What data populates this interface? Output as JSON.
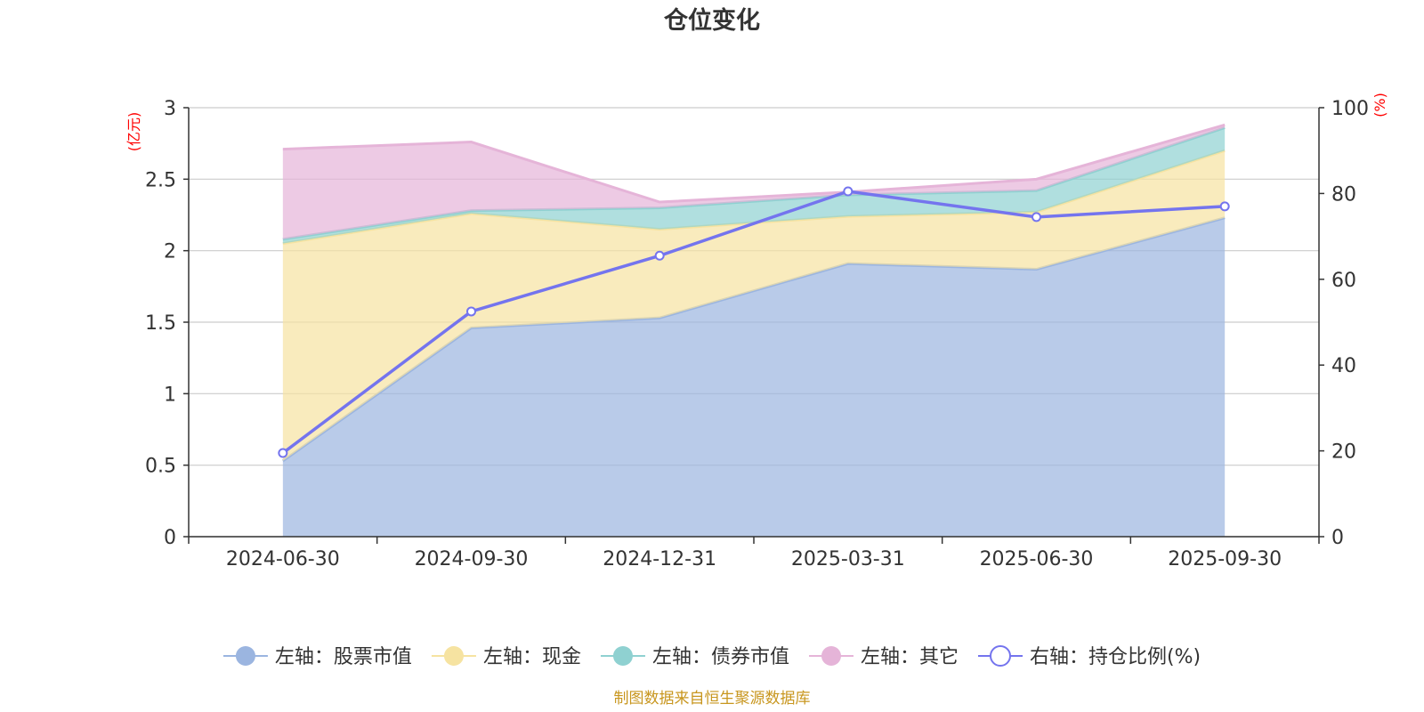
{
  "chart_data": {
    "type": "area",
    "title": "仓位变化",
    "x": [
      "2024-06-30",
      "2024-09-30",
      "2024-12-31",
      "2025-03-31",
      "2025-06-30",
      "2025-09-30"
    ],
    "left_axis": {
      "unit": "(亿元)",
      "ylim": [
        0,
        3
      ],
      "ticks": [
        "0",
        "0.5",
        "1",
        "1.5",
        "2",
        "2.5",
        "3"
      ]
    },
    "right_axis": {
      "unit": "(%)",
      "ylim": [
        0,
        100
      ],
      "ticks": [
        "0",
        "20",
        "40",
        "60",
        "80",
        "100"
      ]
    },
    "stacked_series": [
      {
        "name": "左轴：股票市值",
        "values": [
          0.53,
          1.46,
          1.53,
          1.91,
          1.87,
          2.23
        ],
        "color": "#9bb5e0"
      },
      {
        "name": "左轴：现金",
        "values": [
          1.52,
          0.8,
          0.62,
          0.33,
          0.4,
          0.47
        ],
        "color": "#f6e3a1"
      },
      {
        "name": "左轴：债券市值",
        "values": [
          0.03,
          0.02,
          0.15,
          0.15,
          0.15,
          0.16
        ],
        "color": "#8fd1d1"
      },
      {
        "name": "左轴：其它",
        "values": [
          0.63,
          0.48,
          0.04,
          0.02,
          0.08,
          0.02
        ],
        "color": "#e5b4d8"
      }
    ],
    "line_series": {
      "name": "右轴：持仓比例(%)",
      "values": [
        19.5,
        52.5,
        65.5,
        80.5,
        74.5,
        77.0
      ],
      "color": "#7474ee"
    },
    "grid": true,
    "legend_position": "bottom-center",
    "source": "制图数据来自恒生聚源数据库"
  }
}
